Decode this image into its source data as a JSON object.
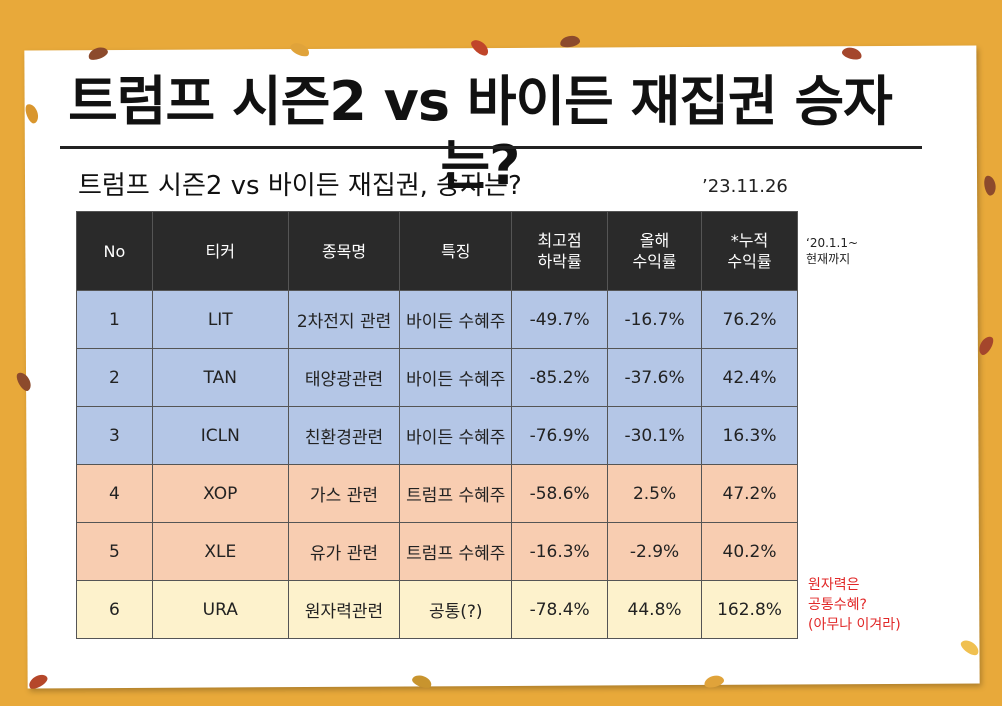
{
  "title": "트럼프 시즌2 vs 바이든 재집권 승자는?",
  "subtitle": "트럼프 시즌2 vs 바이든 재집권, 승자는?",
  "date": "’23.11.26",
  "side_note": {
    "line1": "‘20.1.1~",
    "line2": "현재까지"
  },
  "red_note": {
    "line1": "원자력은",
    "line2": "공통수혜?",
    "line3": "(아무나 이겨라)"
  },
  "table": {
    "headers": [
      {
        "line1": "No",
        "line2": ""
      },
      {
        "line1": "티커",
        "line2": ""
      },
      {
        "line1": "종목명",
        "line2": ""
      },
      {
        "line1": "특징",
        "line2": ""
      },
      {
        "line1": "최고점",
        "line2": "하락률"
      },
      {
        "line1": "올해",
        "line2": "수익률"
      },
      {
        "line1": "*누적",
        "line2": "수익률"
      }
    ],
    "rows": [
      {
        "no": "1",
        "ticker": "LIT",
        "name": "2차전지 관련",
        "feature": "바이든 수혜주",
        "drawdown": "-49.7%",
        "ytd": "-16.7%",
        "cumulative": "76.2%"
      },
      {
        "no": "2",
        "ticker": "TAN",
        "name": "태양광관련",
        "feature": "바이든 수혜주",
        "drawdown": "-85.2%",
        "ytd": "-37.6%",
        "cumulative": "42.4%"
      },
      {
        "no": "3",
        "ticker": "ICLN",
        "name": "친환경관련",
        "feature": "바이든 수혜주",
        "drawdown": "-76.9%",
        "ytd": "-30.1%",
        "cumulative": "16.3%"
      },
      {
        "no": "4",
        "ticker": "XOP",
        "name": "가스 관련",
        "feature": "트럼프 수혜주",
        "drawdown": "-58.6%",
        "ytd": "2.5%",
        "cumulative": "47.2%"
      },
      {
        "no": "5",
        "ticker": "XLE",
        "name": "유가 관련",
        "feature": "트럼프 수혜주",
        "drawdown": "-16.3%",
        "ytd": "-2.9%",
        "cumulative": "40.2%"
      },
      {
        "no": "6",
        "ticker": "URA",
        "name": "원자력관련",
        "feature": "공통(?)",
        "drawdown": "-78.4%",
        "ytd": "44.8%",
        "cumulative": "162.8%"
      }
    ]
  },
  "colors": {
    "background": "#e8a93a",
    "header": "#2a2a2a",
    "biden_rows": "#b4c6e6",
    "trump_rows": "#f8cdb1",
    "common_row": "#fdf2cc",
    "note_red": "#e12828"
  }
}
